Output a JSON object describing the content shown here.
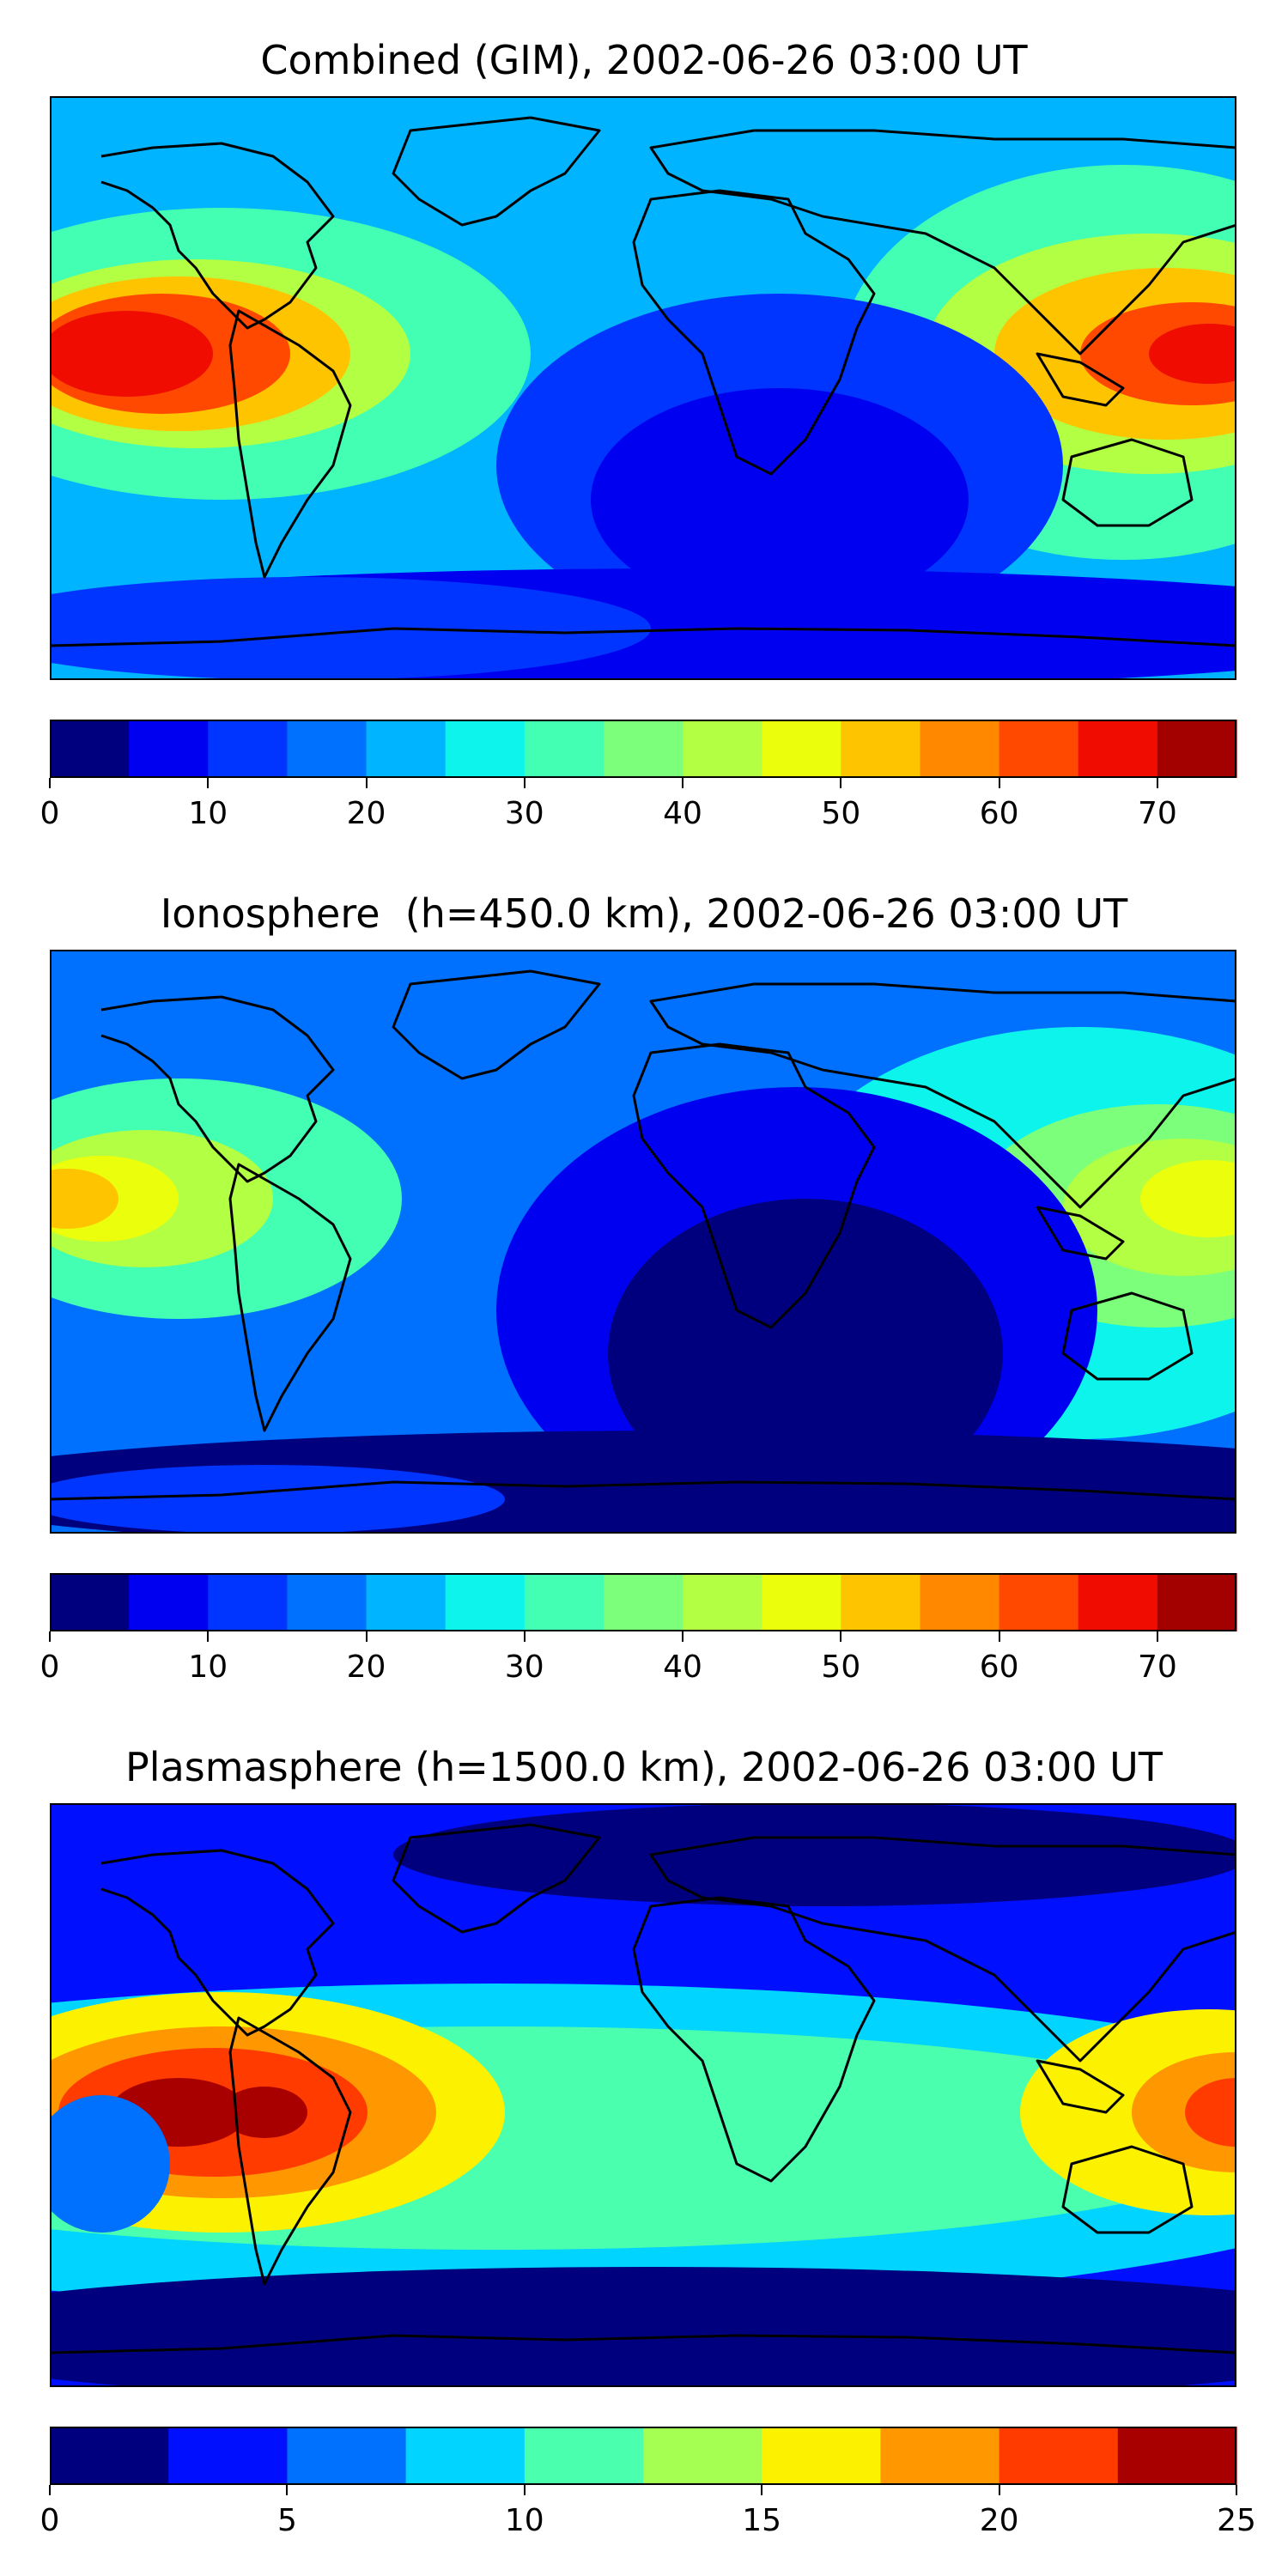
{
  "panels": [
    {
      "title": "Combined (GIM), 2002-06-26 03:00 UT",
      "colorbar": {
        "vmin": 0,
        "vmax": 75,
        "step": 5,
        "tick_values": [
          0,
          10,
          20,
          30,
          40,
          50,
          60,
          70
        ],
        "tick_labels": [
          "0",
          "10",
          "20",
          "30",
          "40",
          "50",
          "60",
          "70"
        ]
      },
      "background_level": 4
    },
    {
      "title": "Ionosphere  (h=450.0 km), 2002-06-26 03:00 UT",
      "colorbar": {
        "vmin": 0,
        "vmax": 75,
        "step": 5,
        "tick_values": [
          0,
          10,
          20,
          30,
          40,
          50,
          60,
          70
        ],
        "tick_labels": [
          "0",
          "10",
          "20",
          "30",
          "40",
          "50",
          "60",
          "70"
        ]
      },
      "background_level": 3
    },
    {
      "title": "Plasmasphere (h=1500.0 km), 2002-06-26 03:00 UT",
      "colorbar": {
        "vmin": 0,
        "vmax": 25,
        "step": 2.5,
        "tick_values": [
          0,
          5,
          10,
          15,
          20,
          25
        ],
        "tick_labels": [
          "0",
          "5",
          "10",
          "15",
          "20",
          "25"
        ]
      },
      "background_level": 1
    }
  ],
  "colors": {
    "jet15": [
      "#00007f",
      "#0000f0",
      "#0034ff",
      "#0070ff",
      "#00b4ff",
      "#0cf4eb",
      "#43ffb3",
      "#7cff7a",
      "#b3ff43",
      "#ebff0c",
      "#ffc400",
      "#ff8800",
      "#ff4800",
      "#f00c00",
      "#a30000"
    ],
    "jet10": [
      "#00007f",
      "#0010ff",
      "#0070ff",
      "#00d4ff",
      "#4affad",
      "#a4ff52",
      "#fcf200",
      "#ff9700",
      "#ff3b00",
      "#a80000"
    ],
    "coastline": "#000000"
  }
}
